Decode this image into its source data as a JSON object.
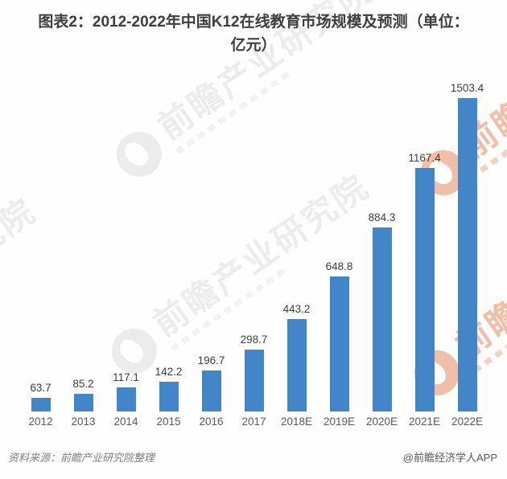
{
  "title": "图表2：2012-2022年中国K12在线教育市场规模及预测（单位：亿元）",
  "chart_data": {
    "type": "bar",
    "title": "图表2：2012-2022年中国K12在线教育市场规模及预测（单位：亿元）",
    "unit": "亿元",
    "categories": [
      "2012",
      "2013",
      "2014",
      "2015",
      "2016",
      "2017",
      "2018E",
      "2019E",
      "2020E",
      "2021E",
      "2022E"
    ],
    "values": [
      63.7,
      85.2,
      117.1,
      142.2,
      196.7,
      298.7,
      443.2,
      648.8,
      884.3,
      1167.4,
      1503.4
    ],
    "value_labels_shown": true,
    "ylim": [
      0,
      1600
    ],
    "grid": false,
    "legend": false,
    "bar_color": "#4385C9",
    "value_label_color": "#3F3F3F",
    "axis_label_color": "#595959"
  },
  "footer": {
    "source": "资料来源：前瞻产业研究院整理",
    "credit": "@前瞻经济学人APP"
  },
  "watermark": {
    "text": "前瞻产业研究院",
    "gray_color": "rgba(80,80,80,0.10)",
    "orange_color": "rgba(222,115,62,0.45)"
  }
}
